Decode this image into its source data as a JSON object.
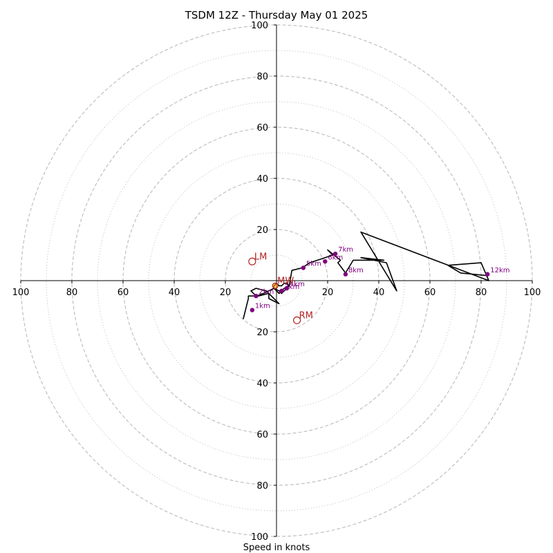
{
  "chart_data": {
    "type": "hodograph",
    "title": "TSDM 12Z - Thursday May 01 2025",
    "xlabel": "Speed in knots",
    "axis_limit": 100,
    "grid": true,
    "rings_dashed": [
      20,
      40,
      60,
      80,
      100
    ],
    "rings_dotted": [
      10,
      30,
      50,
      70,
      90
    ],
    "tick_labels": {
      "left": [
        "100",
        "80",
        "60",
        "40",
        "20"
      ],
      "right": [
        "20",
        "40",
        "60",
        "80",
        "100"
      ],
      "top": [
        "20",
        "40",
        "60",
        "80",
        "100"
      ],
      "bottom": [
        "20",
        "40",
        "60",
        "80",
        "100"
      ]
    },
    "trace": [
      [
        -13,
        -15
      ],
      [
        -11,
        -7
      ],
      [
        -11,
        -6
      ],
      [
        -7,
        -6
      ],
      [
        -3,
        -5
      ],
      [
        -3,
        -7
      ],
      [
        -1,
        -8
      ],
      [
        1,
        -9
      ],
      [
        -3,
        -5
      ],
      [
        -4,
        -4
      ],
      [
        -8,
        -3
      ],
      [
        -10,
        -4
      ],
      [
        -8,
        -6
      ],
      [
        -5,
        -5
      ],
      [
        -3,
        -4
      ],
      [
        -1,
        -3
      ],
      [
        1,
        -4
      ],
      [
        2,
        -5
      ],
      [
        3,
        -4
      ],
      [
        4,
        -3
      ],
      [
        5,
        -2
      ],
      [
        4,
        -1
      ],
      [
        3,
        -1
      ],
      [
        2,
        -2
      ],
      [
        1,
        -2
      ],
      [
        0,
        -1
      ],
      [
        -1,
        -2
      ],
      [
        -1,
        -3
      ],
      [
        0,
        -4
      ],
      [
        1,
        -5
      ],
      [
        3,
        -3
      ],
      [
        5,
        -2
      ],
      [
        6,
        4
      ],
      [
        10,
        5
      ],
      [
        13,
        7
      ],
      [
        19,
        9
      ],
      [
        22,
        10
      ],
      [
        20,
        12
      ],
      [
        25,
        8
      ],
      [
        24,
        7
      ],
      [
        27,
        3
      ],
      [
        30,
        8
      ],
      [
        42,
        8
      ],
      [
        33,
        9
      ],
      [
        43,
        7
      ],
      [
        47,
        -4
      ],
      [
        33,
        19
      ],
      [
        83,
        0
      ],
      [
        80,
        7
      ],
      [
        67,
        6
      ],
      [
        72,
        3
      ],
      [
        82,
        2
      ]
    ],
    "height_points": [
      {
        "label": "1km",
        "u": -9.5,
        "v": -11.5
      },
      {
        "label": "2km",
        "u": -8,
        "v": -6
      },
      {
        "label": "3km",
        "u": 2,
        "v": -4
      },
      {
        "label": "4km",
        "u": 4,
        "v": -3
      },
      {
        "label": "5km",
        "u": 10.5,
        "v": 5
      },
      {
        "label": "6km",
        "u": 19,
        "v": 7.5
      },
      {
        "label": "7km",
        "u": 23,
        "v": 10.5
      },
      {
        "label": "8km",
        "u": 27,
        "v": 2.5
      },
      {
        "label": "12km",
        "u": 82.5,
        "v": 2.5
      }
    ],
    "motion_markers": [
      {
        "label": "LM",
        "u": -9.5,
        "v": 7.5
      },
      {
        "label": "RM",
        "u": 8,
        "v": -15.5
      },
      {
        "label": "MW",
        "u": -0.5,
        "v": -2
      }
    ],
    "colors": {
      "trace": "#000000",
      "height_points": "#800080",
      "storm_motion": "#b22222",
      "grid": "#bbbbbb",
      "mean_wind_fill": "#ffa500"
    }
  }
}
